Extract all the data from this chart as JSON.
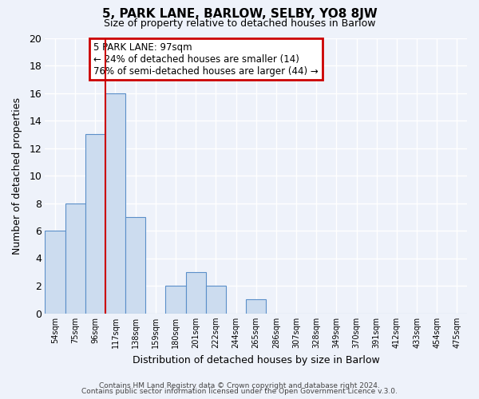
{
  "title": "5, PARK LANE, BARLOW, SELBY, YO8 8JW",
  "subtitle": "Size of property relative to detached houses in Barlow",
  "xlabel": "Distribution of detached houses by size in Barlow",
  "ylabel": "Number of detached properties",
  "bar_labels": [
    "54sqm",
    "75sqm",
    "96sqm",
    "117sqm",
    "138sqm",
    "159sqm",
    "180sqm",
    "201sqm",
    "222sqm",
    "244sqm",
    "265sqm",
    "286sqm",
    "307sqm",
    "328sqm",
    "349sqm",
    "370sqm",
    "391sqm",
    "412sqm",
    "433sqm",
    "454sqm",
    "475sqm"
  ],
  "bar_values": [
    6,
    8,
    13,
    16,
    7,
    0,
    2,
    3,
    2,
    0,
    1,
    0,
    0,
    0,
    0,
    0,
    0,
    0,
    0,
    0,
    0
  ],
  "bar_color": "#ccdcef",
  "bar_edge_color": "#5b8fc9",
  "grid_color": "#d8d8e8",
  "background_color": "#eef2fa",
  "vline_color": "#cc0000",
  "vline_pos": 2.5,
  "annotation_title": "5 PARK LANE: 97sqm",
  "annotation_line1": "← 24% of detached houses are smaller (14)",
  "annotation_line2": "76% of semi-detached houses are larger (44) →",
  "annotation_box_color": "#ffffff",
  "annotation_box_edge": "#cc0000",
  "ylim": [
    0,
    20
  ],
  "yticks": [
    0,
    2,
    4,
    6,
    8,
    10,
    12,
    14,
    16,
    18,
    20
  ],
  "footer1": "Contains HM Land Registry data © Crown copyright and database right 2024.",
  "footer2": "Contains public sector information licensed under the Open Government Licence v.3.0."
}
